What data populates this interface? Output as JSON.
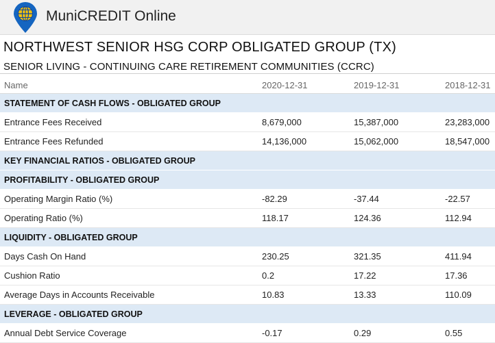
{
  "app": {
    "title": "MuniCREDIT Online",
    "colors": {
      "logo_blue": "#1565c0",
      "logo_gold": "#f4c20d",
      "section_bg": "#dde9f5"
    },
    "logo_icon": "globe-pin-icon"
  },
  "issuer": {
    "name": "NORTHWEST SENIOR HSG CORP OBLIGATED GROUP (TX)",
    "sector": "SENIOR LIVING - CONTINUING CARE RETIREMENT COMMUNITIES (CCRC)"
  },
  "table": {
    "headers": [
      "Name",
      "2020-12-31",
      "2019-12-31",
      "2018-12-31"
    ],
    "rows": [
      {
        "type": "section",
        "label": "STATEMENT OF CASH FLOWS - OBLIGATED GROUP"
      },
      {
        "type": "data",
        "label": "Entrance Fees Received",
        "values": [
          "8,679,000",
          "15,387,000",
          "23,283,000"
        ]
      },
      {
        "type": "data",
        "label": "Entrance Fees Refunded",
        "values": [
          "14,136,000",
          "15,062,000",
          "18,547,000"
        ]
      },
      {
        "type": "section",
        "label": "KEY FINANCIAL RATIOS - OBLIGATED GROUP"
      },
      {
        "type": "section",
        "label": "PROFITABILITY - OBLIGATED GROUP"
      },
      {
        "type": "data",
        "label": "Operating Margin Ratio (%)",
        "values": [
          "-82.29",
          "-37.44",
          "-22.57"
        ]
      },
      {
        "type": "data",
        "label": "Operating Ratio (%)",
        "values": [
          "118.17",
          "124.36",
          "112.94"
        ]
      },
      {
        "type": "section",
        "label": "LIQUIDITY - OBLIGATED GROUP"
      },
      {
        "type": "data",
        "label": "Days Cash On Hand",
        "values": [
          "230.25",
          "321.35",
          "411.94"
        ]
      },
      {
        "type": "data",
        "label": "Cushion Ratio",
        "values": [
          "0.2",
          "17.22",
          "17.36"
        ]
      },
      {
        "type": "data",
        "label": "Average Days in Accounts Receivable",
        "values": [
          "10.83",
          "13.33",
          "110.09"
        ]
      },
      {
        "type": "section",
        "label": "LEVERAGE - OBLIGATED GROUP"
      },
      {
        "type": "data",
        "label": "Annual Debt Service Coverage",
        "values": [
          "-0.17",
          "0.29",
          "0.55"
        ]
      }
    ]
  }
}
